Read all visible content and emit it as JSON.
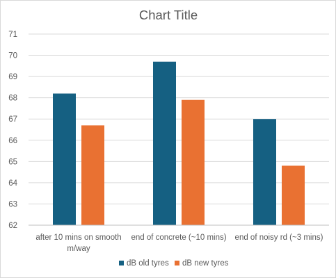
{
  "chart_data": {
    "type": "bar",
    "title": "Chart Title",
    "xlabel": "",
    "ylabel": "",
    "ylim": [
      62,
      71
    ],
    "yticks": [
      62,
      63,
      64,
      65,
      66,
      67,
      68,
      69,
      70,
      71
    ],
    "categories": [
      [
        "after 10 mins on smooth",
        "m/way"
      ],
      [
        "end of concrete (~10 mins)"
      ],
      [
        "end of noisy rd (~3 mins)"
      ]
    ],
    "series": [
      {
        "name": "dB old tyres",
        "color": "#156082",
        "values": [
          68.2,
          69.7,
          67.0
        ]
      },
      {
        "name": "dB new tyres",
        "color": "#E97132",
        "values": [
          66.7,
          67.9,
          64.8
        ]
      }
    ],
    "grid": true,
    "legend_position": "bottom"
  }
}
